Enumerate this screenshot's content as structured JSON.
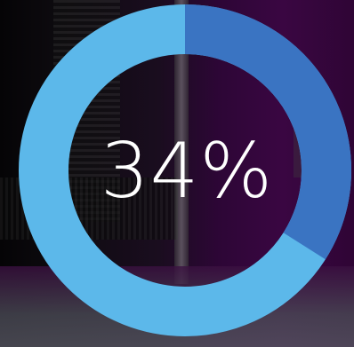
{
  "progress": {
    "percent": 34,
    "label": "34%"
  },
  "colors": {
    "filled": "#3a74c2",
    "remaining": "#5cb8ea",
    "text": "#ffffff"
  },
  "icons": {
    "indicator": "progress-donut-icon"
  }
}
